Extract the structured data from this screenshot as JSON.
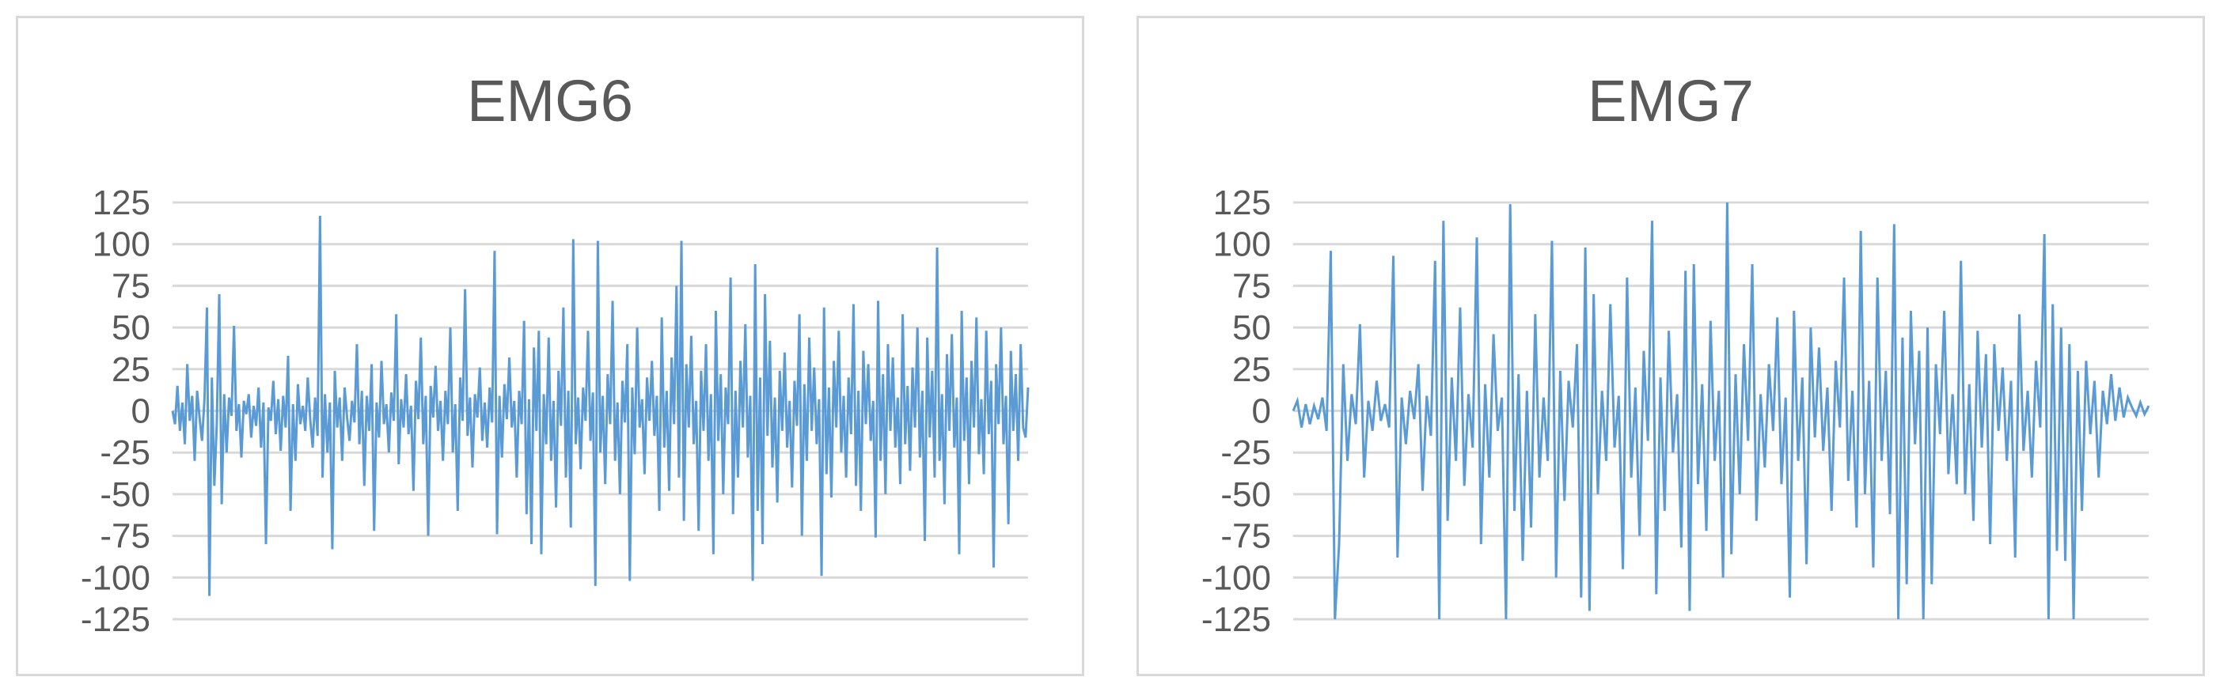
{
  "chart_data": [
    {
      "type": "line",
      "title": "EMG6",
      "xlabel": "",
      "ylabel": "",
      "ylim": [
        -125,
        125
      ],
      "yticks": [
        125,
        100,
        75,
        50,
        25,
        0,
        -25,
        -50,
        -75,
        -100,
        -125
      ],
      "grid": true,
      "legend": "none",
      "color": "#5b9bd5",
      "series": [
        {
          "x_range": [
            0,
            1800
          ],
          "values": [
            0,
            -8,
            15,
            -12,
            5,
            -20,
            28,
            -6,
            9,
            -30,
            12,
            -4,
            -18,
            7,
            62,
            -111,
            20,
            -45,
            -8,
            70,
            -56,
            10,
            -25,
            8,
            -3,
            51,
            -12,
            4,
            -28,
            6,
            -2,
            10,
            -16,
            3,
            -9,
            14,
            -22,
            5,
            -80,
            2,
            -6,
            18,
            -14,
            7,
            -24,
            9,
            -10,
            33,
            -60,
            4,
            -30,
            16,
            -8,
            3,
            -12,
            20,
            -5,
            -22,
            8,
            -15,
            117,
            -40,
            10,
            -25,
            5,
            -83,
            24,
            -10,
            8,
            -30,
            14,
            -4,
            -18,
            6,
            -7,
            40,
            -20,
            12,
            -45,
            9,
            -12,
            28,
            -72,
            5,
            -16,
            30,
            -8,
            4,
            -25,
            11,
            -6,
            58,
            -32,
            7,
            -10,
            22,
            -14,
            3,
            -48,
            18,
            -5,
            44,
            -20,
            9,
            -75,
            15,
            -4,
            27,
            -12,
            6,
            -30,
            12,
            -8,
            50,
            -25,
            4,
            -60,
            20,
            -6,
            73,
            -15,
            8,
            -34,
            10,
            -4,
            26,
            -18,
            5,
            -22,
            14,
            -7,
            96,
            -74,
            9,
            -28,
            16,
            -5,
            32,
            -10,
            6,
            -40,
            12,
            -8,
            54,
            -62,
            7,
            -80,
            38,
            -12,
            48,
            -86,
            10,
            -20,
            44,
            -30,
            6,
            -58,
            24,
            -9,
            62,
            -40,
            12,
            -70,
            103,
            -20,
            8,
            -35,
            14,
            -6,
            48,
            -18,
            11,
            -105,
            102,
            -25,
            9,
            -44,
            22,
            -8,
            66,
            -30,
            5,
            -50,
            18,
            -7,
            40,
            -102,
            14,
            -26,
            50,
            -10,
            7,
            -38,
            20,
            -6,
            30,
            -15,
            9,
            -60,
            56,
            -22,
            12,
            -48,
            32,
            -8,
            75,
            -40,
            102,
            -66,
            28,
            -10,
            45,
            -20,
            6,
            -72,
            24,
            -12,
            40,
            -30,
            10,
            -86,
            60,
            -18,
            22,
            -50,
            14,
            -8,
            80,
            -62,
            12,
            -40,
            30,
            -10,
            52,
            -28,
            9,
            -102,
            88,
            -60,
            20,
            -80,
            70,
            -15,
            42,
            -34,
            8,
            -55,
            24,
            -12,
            35,
            -22,
            6,
            -46,
            18,
            -9,
            58,
            -75,
            16,
            -30,
            44,
            -12,
            26,
            -20,
            7,
            -99,
            62,
            -38,
            14,
            -52,
            30,
            -10,
            48,
            -25,
            9,
            -40,
            20,
            -14,
            64,
            -45,
            12,
            -60,
            36,
            -8,
            28,
            -18,
            6,
            -76,
            66,
            -30,
            22,
            -50,
            40,
            -12,
            32,
            -22,
            8,
            -44,
            58,
            -20,
            15,
            -36,
            26,
            -10,
            50,
            -28,
            12,
            -78,
            44,
            -16,
            24,
            -40,
            98,
            -30,
            10,
            -56,
            34,
            -12,
            46,
            -22,
            8,
            -86,
            60,
            -18,
            20,
            -44,
            30,
            -10,
            56,
            -26,
            7,
            -38,
            48,
            -14,
            18,
            -94,
            28,
            -8,
            50,
            -20,
            9,
            -68,
            36,
            -12,
            22,
            -30,
            40,
            -10,
            -16,
            14
          ]
        }
      ]
    },
    {
      "type": "line",
      "title": "EMG7",
      "xlabel": "",
      "ylabel": "",
      "ylim": [
        -125,
        125
      ],
      "yticks": [
        125,
        100,
        75,
        50,
        25,
        0,
        -25,
        -50,
        -75,
        -100,
        -125
      ],
      "grid": true,
      "legend": "none",
      "color": "#5b9bd5",
      "series": [
        {
          "x_range": [
            0,
            1800
          ],
          "values": [
            0,
            6,
            -10,
            4,
            -8,
            3,
            -5,
            8,
            -12,
            96,
            -125,
            -80,
            28,
            -30,
            10,
            -8,
            52,
            -40,
            6,
            -12,
            18,
            -6,
            4,
            -10,
            93,
            -88,
            8,
            -20,
            12,
            -5,
            28,
            -48,
            9,
            -15,
            90,
            -125,
            114,
            -66,
            20,
            -30,
            62,
            -45,
            10,
            -22,
            104,
            -80,
            16,
            -40,
            46,
            -12,
            8,
            -125,
            124,
            -60,
            22,
            -90,
            12,
            -70,
            58,
            -40,
            8,
            -30,
            102,
            -100,
            24,
            -54,
            18,
            -10,
            40,
            -112,
            98,
            -120,
            70,
            -50,
            12,
            -30,
            64,
            -22,
            9,
            -95,
            80,
            -40,
            14,
            -75,
            36,
            -18,
            114,
            -110,
            20,
            -60,
            48,
            -25,
            10,
            -82,
            84,
            -120,
            88,
            -44,
            16,
            -72,
            54,
            -30,
            12,
            -100,
            125,
            -86,
            22,
            -50,
            40,
            -18,
            88,
            -66,
            10,
            -34,
            28,
            -12,
            56,
            -44,
            8,
            -112,
            60,
            -30,
            20,
            -92,
            50,
            -16,
            38,
            -24,
            14,
            -60,
            30,
            -10,
            80,
            -42,
            12,
            -70,
            108,
            -50,
            18,
            -94,
            80,
            -30,
            24,
            -62,
            112,
            -125,
            44,
            -104,
            60,
            -20,
            36,
            -125,
            50,
            -104,
            28,
            -14,
            60,
            -38,
            10,
            -44,
            90,
            -50,
            16,
            -66,
            48,
            -22,
            34,
            -80,
            40,
            -12,
            26,
            -30,
            18,
            -88,
            58,
            -24,
            12,
            -40,
            30,
            -10,
            106,
            -125,
            64,
            -84,
            50,
            -90,
            40,
            -125,
            24,
            -60,
            30,
            -14,
            18,
            -40,
            12,
            -8,
            22,
            -6,
            14,
            -4,
            8,
            2,
            -3,
            5,
            -2,
            3
          ]
        }
      ]
    }
  ]
}
